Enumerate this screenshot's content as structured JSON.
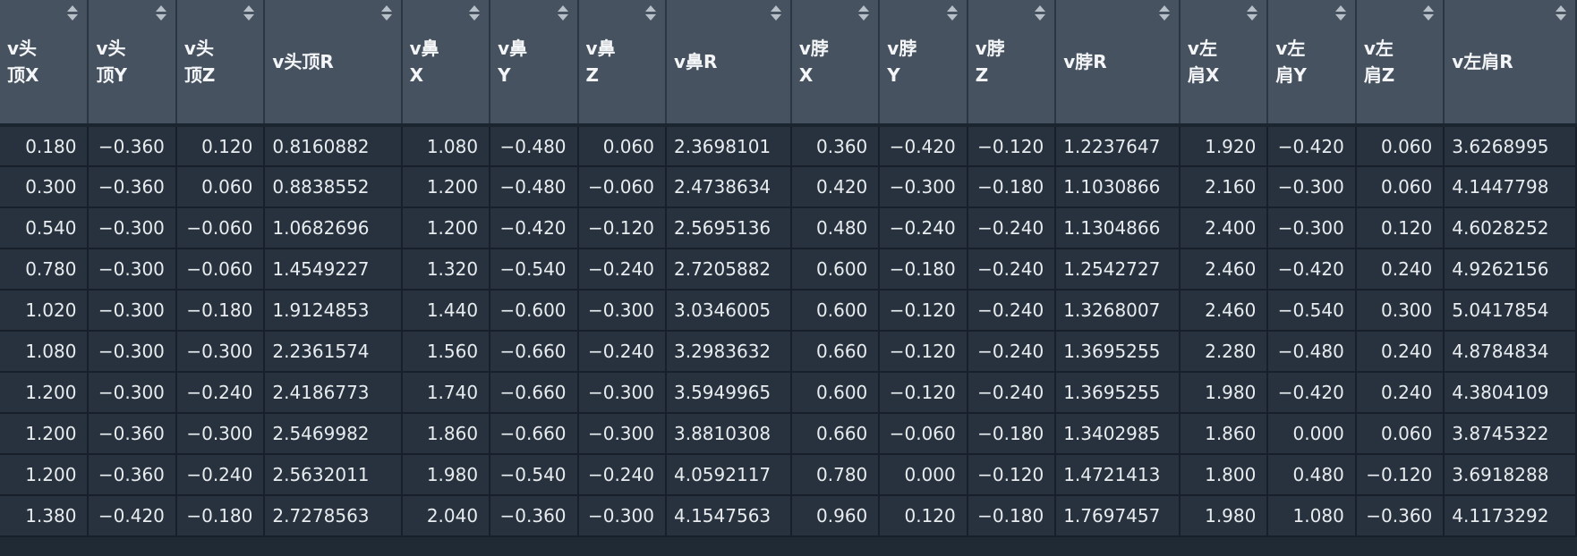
{
  "columns": [
    {
      "label": "v头\n顶X",
      "r": false
    },
    {
      "label": "v头\n顶Y",
      "r": false
    },
    {
      "label": "v头\n顶Z",
      "r": false
    },
    {
      "label": "v头顶R",
      "r": true
    },
    {
      "label": "v鼻\nX",
      "r": false
    },
    {
      "label": "v鼻\nY",
      "r": false
    },
    {
      "label": "v鼻\nZ",
      "r": false
    },
    {
      "label": "v鼻R",
      "r": true
    },
    {
      "label": "v脖\nX",
      "r": false
    },
    {
      "label": "v脖\nY",
      "r": false
    },
    {
      "label": "v脖\nZ",
      "r": false
    },
    {
      "label": "v脖R",
      "r": true
    },
    {
      "label": "v左\n肩X",
      "r": false
    },
    {
      "label": "v左\n肩Y",
      "r": false
    },
    {
      "label": "v左\n肩Z",
      "r": false
    },
    {
      "label": "v左肩R",
      "r": true
    }
  ],
  "rows": [
    [
      "0.180",
      "−0.360",
      "0.120",
      "0.8160882",
      "1.080",
      "−0.480",
      "0.060",
      "2.3698101",
      "0.360",
      "−0.420",
      "−0.120",
      "1.2237647",
      "1.920",
      "−0.420",
      "0.060",
      "3.6268995"
    ],
    [
      "0.300",
      "−0.360",
      "0.060",
      "0.8838552",
      "1.200",
      "−0.480",
      "−0.060",
      "2.4738634",
      "0.420",
      "−0.300",
      "−0.180",
      "1.1030866",
      "2.160",
      "−0.300",
      "0.060",
      "4.1447798"
    ],
    [
      "0.540",
      "−0.300",
      "−0.060",
      "1.0682696",
      "1.200",
      "−0.420",
      "−0.120",
      "2.5695136",
      "0.480",
      "−0.240",
      "−0.240",
      "1.1304866",
      "2.400",
      "−0.300",
      "0.120",
      "4.6028252"
    ],
    [
      "0.780",
      "−0.300",
      "−0.060",
      "1.4549227",
      "1.320",
      "−0.540",
      "−0.240",
      "2.7205882",
      "0.600",
      "−0.180",
      "−0.240",
      "1.2542727",
      "2.460",
      "−0.420",
      "0.240",
      "4.9262156"
    ],
    [
      "1.020",
      "−0.300",
      "−0.180",
      "1.9124853",
      "1.440",
      "−0.600",
      "−0.300",
      "3.0346005",
      "0.600",
      "−0.120",
      "−0.240",
      "1.3268007",
      "2.460",
      "−0.540",
      "0.300",
      "5.0417854"
    ],
    [
      "1.080",
      "−0.300",
      "−0.300",
      "2.2361574",
      "1.560",
      "−0.660",
      "−0.240",
      "3.2983632",
      "0.660",
      "−0.120",
      "−0.240",
      "1.3695255",
      "2.280",
      "−0.480",
      "0.240",
      "4.8784834"
    ],
    [
      "1.200",
      "−0.300",
      "−0.240",
      "2.4186773",
      "1.740",
      "−0.660",
      "−0.300",
      "3.5949965",
      "0.600",
      "−0.120",
      "−0.240",
      "1.3695255",
      "1.980",
      "−0.420",
      "0.240",
      "4.3804109"
    ],
    [
      "1.200",
      "−0.360",
      "−0.300",
      "2.5469982",
      "1.860",
      "−0.660",
      "−0.300",
      "3.8810308",
      "0.660",
      "−0.060",
      "−0.180",
      "1.3402985",
      "1.860",
      "0.000",
      "0.060",
      "3.8745322"
    ],
    [
      "1.200",
      "−0.360",
      "−0.240",
      "2.5632011",
      "1.980",
      "−0.540",
      "−0.240",
      "4.0592117",
      "0.780",
      "0.000",
      "−0.120",
      "1.4721413",
      "1.800",
      "0.480",
      "−0.120",
      "3.6918288"
    ],
    [
      "1.380",
      "−0.420",
      "−0.180",
      "2.7278563",
      "2.040",
      "−0.360",
      "−0.300",
      "4.1547563",
      "0.960",
      "0.120",
      "−0.180",
      "1.7697457",
      "1.980",
      "1.080",
      "−0.360",
      "4.1173292"
    ]
  ]
}
